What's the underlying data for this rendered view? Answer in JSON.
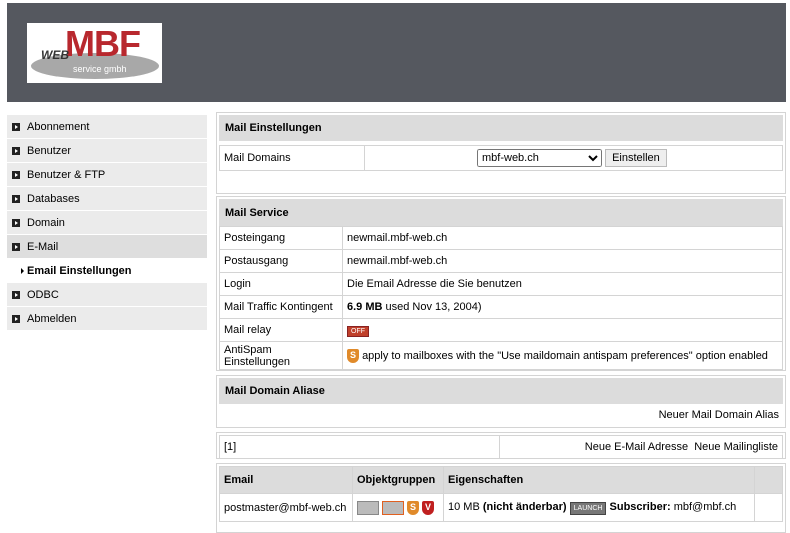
{
  "logo": {
    "text": "MBF",
    "web": "WEB",
    "sub": "service gmbh"
  },
  "sidebar": {
    "items": [
      {
        "label": "Abonnement"
      },
      {
        "label": "Benutzer"
      },
      {
        "label": "Benutzer & FTP"
      },
      {
        "label": "Databases"
      },
      {
        "label": "Domain"
      },
      {
        "label": "E-Mail"
      },
      {
        "label": "Email Einstellungen"
      },
      {
        "label": "ODBC"
      },
      {
        "label": "Abmelden"
      }
    ]
  },
  "settings": {
    "title": "Mail Einstellungen",
    "label": "Mail Domains",
    "selected": "mbf-web.ch",
    "button": "Einstellen"
  },
  "service": {
    "title": "Mail Service",
    "rows": [
      {
        "label": "Posteingang",
        "value": "newmail.mbf-web.ch"
      },
      {
        "label": "Postausgang",
        "value": "newmail.mbf-web.ch"
      },
      {
        "label": "Login",
        "value": "Die Email Adresse die Sie benutzen"
      },
      {
        "label": "Mail Traffic Kontingent",
        "bold": "6.9 MB",
        "value": " used Nov 13, 2004)"
      },
      {
        "label": "Mail relay",
        "badge": "OFF"
      },
      {
        "label": "AntiSpam Einstellungen",
        "icon": "S",
        "value": "apply to mailboxes with the \"Use maildomain antispam preferences\" option enabled"
      }
    ]
  },
  "alias": {
    "title": "Mail Domain Aliase",
    "link": "Neuer Mail Domain Alias"
  },
  "pager": {
    "page": "[1]",
    "new_email": "Neue E-Mail Adresse",
    "new_list": "Neue Mailingliste"
  },
  "table": {
    "headers": [
      "Email",
      "Objektgruppen",
      "Eigenschaften"
    ],
    "rows": [
      {
        "email": "postmaster@mbf-web.ch",
        "size": "10 MB",
        "note": "(nicht änderbar)",
        "launch": "LAUNCH",
        "sub_label": "Subscriber:",
        "sub_value": " mbf@mbf.ch",
        "s": "S",
        "v": "V"
      }
    ]
  },
  "colors": {
    "header": "#55585f",
    "accent": "#b8282e"
  }
}
